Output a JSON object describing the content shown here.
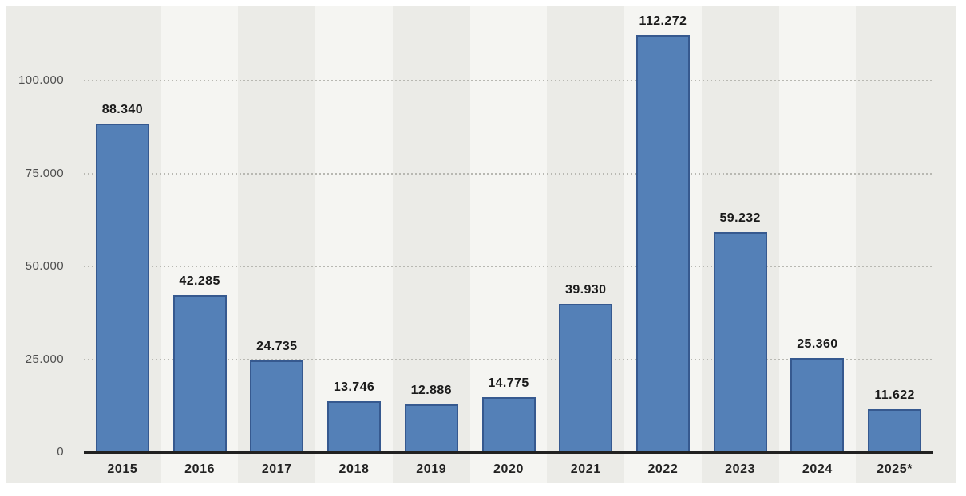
{
  "chart_data": {
    "type": "bar",
    "categories": [
      "2015",
      "2016",
      "2017",
      "2018",
      "2019",
      "2020",
      "2021",
      "2022",
      "2023",
      "2024",
      "2025*"
    ],
    "values": [
      88340,
      42285,
      24735,
      13746,
      12886,
      14775,
      39930,
      112272,
      59232,
      25360,
      11622
    ],
    "value_labels": [
      "88.340",
      "42.285",
      "24.735",
      "13.746",
      "12.886",
      "14.775",
      "39.930",
      "112.272",
      "59.232",
      "25.360",
      "11.622"
    ],
    "title": "",
    "xlabel": "",
    "ylabel": "",
    "ylim": [
      0,
      120000
    ],
    "yticks": [
      {
        "value": 0,
        "label": "0"
      },
      {
        "value": 25000,
        "label": "25.000"
      },
      {
        "value": 50000,
        "label": "50.000"
      },
      {
        "value": 75000,
        "label": "75.000"
      },
      {
        "value": 100000,
        "label": "100.000"
      }
    ],
    "grid": "horizontal-dotted",
    "legend_position": "none",
    "colors": {
      "bar_fill": "#5480B7",
      "bar_border": "#36598F",
      "plot_background": "#EBEBE7",
      "stripe_alternate": "#F5F5F2",
      "gridline": "#B8B8B2",
      "axis_line": "#212121",
      "data_label": "#1A1A1A",
      "ytick_label": "#4F4F4F"
    }
  }
}
